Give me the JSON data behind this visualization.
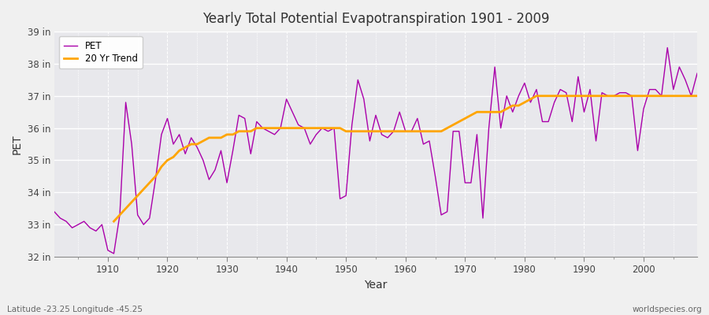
{
  "title": "Yearly Total Potential Evapotranspiration 1901 - 2009",
  "xlabel": "Year",
  "ylabel": "PET",
  "subtitle_left": "Latitude -23.25 Longitude -45.25",
  "subtitle_right": "worldspecies.org",
  "bg_color": "#f0f0f0",
  "plot_bg_color": "#e8e8ec",
  "pet_color": "#aa00aa",
  "trend_color": "#ffa500",
  "ylim": [
    32,
    39
  ],
  "yticks": [
    32,
    33,
    34,
    35,
    36,
    37,
    38,
    39
  ],
  "ytick_labels": [
    "32 in",
    "33 in",
    "34 in",
    "35 in",
    "36 in",
    "37 in",
    "38 in",
    "39 in"
  ],
  "years": [
    1901,
    1902,
    1903,
    1904,
    1905,
    1906,
    1907,
    1908,
    1909,
    1910,
    1911,
    1912,
    1913,
    1914,
    1915,
    1916,
    1917,
    1918,
    1919,
    1920,
    1921,
    1922,
    1923,
    1924,
    1925,
    1926,
    1927,
    1928,
    1929,
    1930,
    1931,
    1932,
    1933,
    1934,
    1935,
    1936,
    1937,
    1938,
    1939,
    1940,
    1941,
    1942,
    1943,
    1944,
    1945,
    1946,
    1947,
    1948,
    1949,
    1950,
    1951,
    1952,
    1953,
    1954,
    1955,
    1956,
    1957,
    1958,
    1959,
    1960,
    1961,
    1962,
    1963,
    1964,
    1965,
    1966,
    1967,
    1968,
    1969,
    1970,
    1971,
    1972,
    1973,
    1974,
    1975,
    1976,
    1977,
    1978,
    1979,
    1980,
    1981,
    1982,
    1983,
    1984,
    1985,
    1986,
    1987,
    1988,
    1989,
    1990,
    1991,
    1992,
    1993,
    1994,
    1995,
    1996,
    1997,
    1998,
    1999,
    2000,
    2001,
    2002,
    2003,
    2004,
    2005,
    2006,
    2007,
    2008,
    2009
  ],
  "pet_values": [
    33.4,
    33.2,
    33.1,
    32.9,
    33.0,
    33.1,
    32.9,
    32.8,
    33.0,
    32.2,
    32.1,
    33.3,
    36.8,
    35.5,
    33.3,
    33.0,
    33.2,
    34.4,
    35.8,
    36.3,
    35.5,
    35.8,
    35.2,
    35.7,
    35.4,
    35.0,
    34.4,
    34.7,
    35.3,
    34.3,
    35.3,
    36.4,
    36.3,
    35.2,
    36.2,
    36.0,
    35.9,
    35.8,
    36.0,
    36.9,
    36.5,
    36.1,
    36.0,
    35.5,
    35.8,
    36.0,
    35.9,
    36.0,
    33.8,
    33.9,
    36.1,
    37.5,
    36.9,
    35.6,
    36.4,
    35.8,
    35.7,
    35.9,
    36.5,
    35.9,
    35.9,
    36.3,
    35.5,
    35.6,
    34.5,
    33.3,
    33.4,
    35.9,
    35.9,
    34.3,
    34.3,
    35.8,
    33.2,
    36.0,
    37.9,
    36.0,
    37.0,
    36.5,
    37.0,
    37.4,
    36.8,
    37.2,
    36.2,
    36.2,
    36.8,
    37.2,
    37.1,
    36.2,
    37.6,
    36.5,
    37.2,
    35.6,
    37.1,
    37.0,
    37.0,
    37.1,
    37.1,
    37.0,
    35.3,
    36.6,
    37.2,
    37.2,
    37.0,
    38.5,
    37.2,
    37.9,
    37.5,
    37.0,
    37.7
  ],
  "trend_years": [
    1911,
    1912,
    1913,
    1914,
    1915,
    1916,
    1917,
    1918,
    1919,
    1920,
    1921,
    1922,
    1923,
    1924,
    1925,
    1926,
    1927,
    1928,
    1929,
    1930,
    1931,
    1932,
    1933,
    1934,
    1935,
    1936,
    1937,
    1938,
    1939,
    1940,
    1941,
    1942,
    1943,
    1944,
    1945,
    1946,
    1947,
    1948,
    1949,
    1950,
    1951,
    1952,
    1953,
    1954,
    1955,
    1956,
    1957,
    1958,
    1959,
    1960,
    1961,
    1962,
    1963,
    1964,
    1965,
    1966,
    1967,
    1968,
    1969,
    1970,
    1971,
    1972,
    1973,
    1974,
    1975,
    1976,
    1977,
    1978,
    1979,
    1980,
    1981,
    1982,
    1983,
    1984,
    1985,
    1986,
    1987,
    1988,
    1989,
    1990,
    1991,
    1992,
    1993,
    1994,
    1995,
    1996,
    1997,
    1998,
    1999,
    2000,
    2001,
    2002,
    2003,
    2004,
    2005,
    2006,
    2007,
    2008,
    2009
  ],
  "trend_values": [
    33.1,
    33.3,
    33.5,
    33.7,
    33.9,
    34.1,
    34.3,
    34.5,
    34.8,
    35.0,
    35.1,
    35.3,
    35.4,
    35.5,
    35.5,
    35.6,
    35.7,
    35.7,
    35.7,
    35.8,
    35.8,
    35.9,
    35.9,
    35.9,
    36.0,
    36.0,
    36.0,
    36.0,
    36.0,
    36.0,
    36.0,
    36.0,
    36.0,
    36.0,
    36.0,
    36.0,
    36.0,
    36.0,
    36.0,
    35.9,
    35.9,
    35.9,
    35.9,
    35.9,
    35.9,
    35.9,
    35.9,
    35.9,
    35.9,
    35.9,
    35.9,
    35.9,
    35.9,
    35.9,
    35.9,
    35.9,
    36.0,
    36.1,
    36.2,
    36.3,
    36.4,
    36.5,
    36.5,
    36.5,
    36.5,
    36.5,
    36.6,
    36.7,
    36.7,
    36.8,
    36.9,
    37.0,
    37.0,
    37.0,
    37.0,
    37.0,
    37.0,
    37.0,
    37.0,
    37.0,
    37.0,
    37.0,
    37.0,
    37.0,
    37.0,
    37.0,
    37.0,
    37.0,
    37.0,
    37.0,
    37.0,
    37.0,
    37.0,
    37.0,
    37.0,
    37.0,
    37.0,
    37.0,
    37.0
  ]
}
